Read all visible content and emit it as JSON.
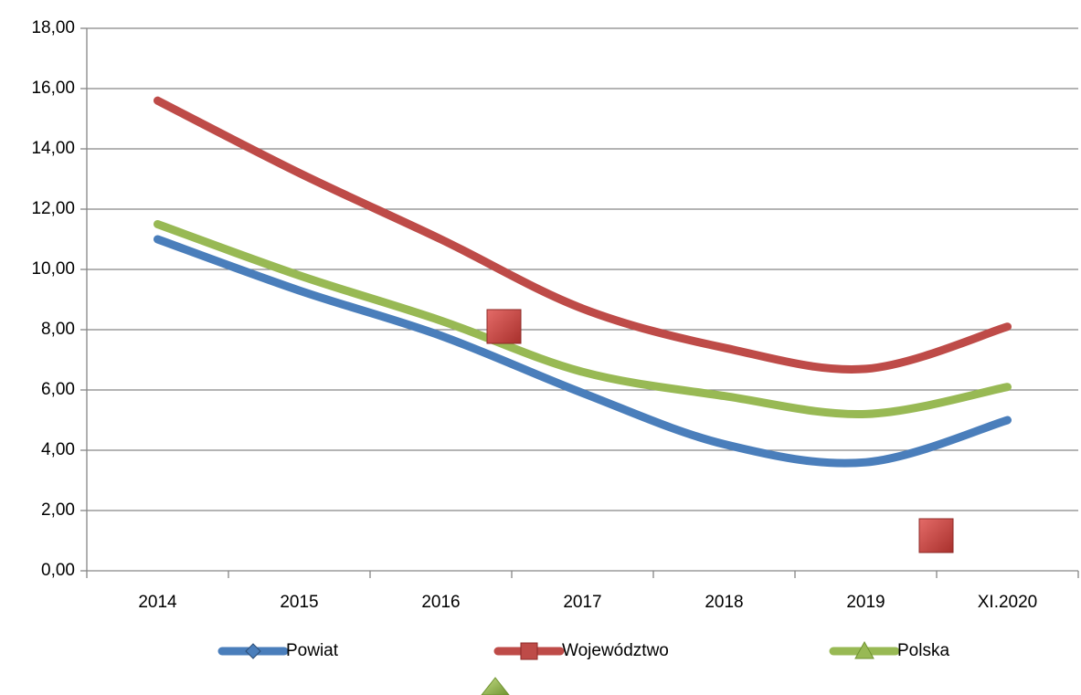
{
  "chart_data": {
    "type": "line",
    "categories": [
      "2014",
      "2015",
      "2016",
      "2017",
      "2018",
      "2019",
      "XI.2020"
    ],
    "series": [
      {
        "name": "Powiat",
        "color": "#4a7ebb",
        "marker": "diamond",
        "values": [
          11.0,
          9.3,
          7.8,
          5.9,
          4.2,
          3.6,
          5.0
        ]
      },
      {
        "name": "Województwo",
        "color": "#be4b48",
        "marker": "square",
        "values": [
          15.6,
          13.2,
          11.0,
          8.7,
          7.4,
          6.7,
          8.1
        ]
      },
      {
        "name": "Polska",
        "color": "#98b954",
        "marker": "triangle",
        "values": [
          11.5,
          9.8,
          8.3,
          6.6,
          5.8,
          5.2,
          6.1
        ]
      }
    ],
    "ylim": [
      0,
      18
    ],
    "yticks": [
      {
        "value": 0,
        "label": "0,00"
      },
      {
        "value": 2,
        "label": "2,00"
      },
      {
        "value": 4,
        "label": "4,00"
      },
      {
        "value": 6,
        "label": "6,00"
      },
      {
        "value": 8,
        "label": "8,00"
      },
      {
        "value": 10,
        "label": "10,00"
      },
      {
        "value": 12,
        "label": "12,00"
      },
      {
        "value": 14,
        "label": "14,00"
      },
      {
        "value": 16,
        "label": "16,00"
      },
      {
        "value": 18,
        "label": "18,00"
      }
    ],
    "grid": true,
    "legend": "bottom"
  }
}
